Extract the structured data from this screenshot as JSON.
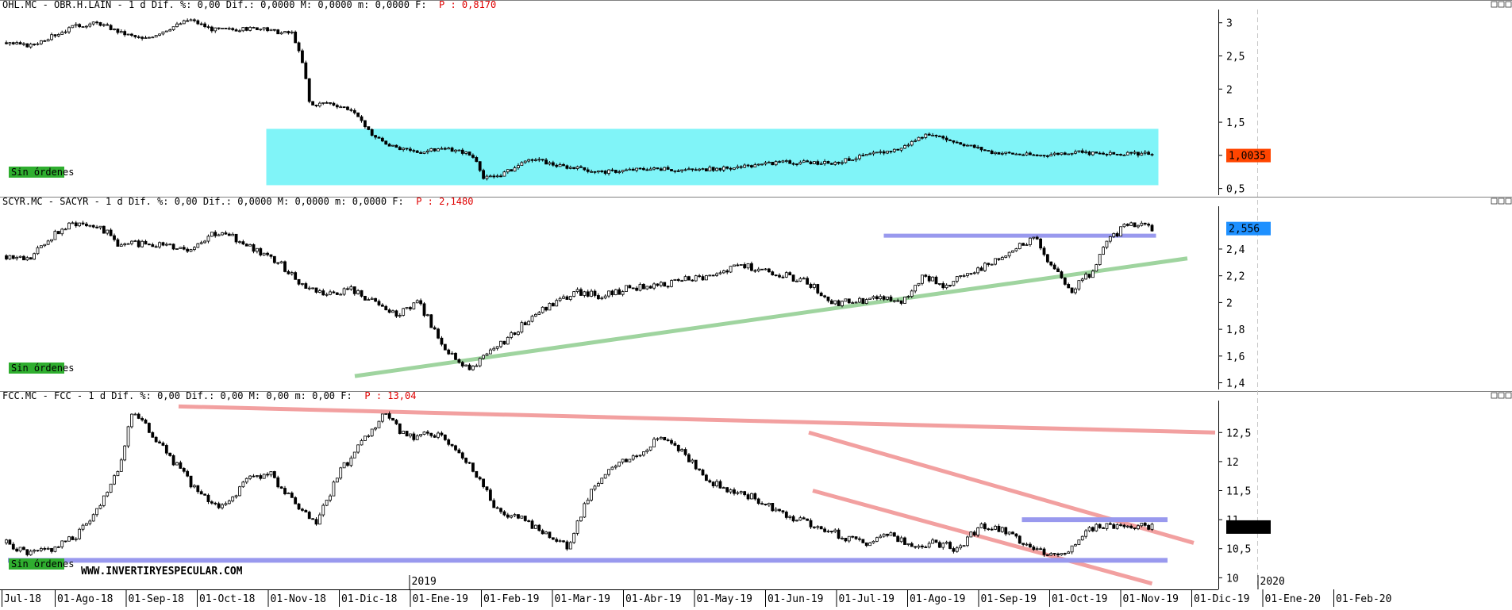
{
  "panels": [
    {
      "id": "ohl",
      "header": "OHL.MC - OBR.H.LAIN -  1 d Dif. %: 0,00 Dif.: 0,0000 M: 0,0000 m: 0,0000 F:",
      "header_value": "P : 0,8170",
      "badge": "Sin órdenes",
      "price_label": "1,0035",
      "price_label_color": "#ff4500"
    },
    {
      "id": "scyr",
      "header": "SCYR.MC - SACYR -  1 d Dif. %: 0,00 Dif.: 0,0000 M: 0,0000 m: 0,0000 F:",
      "header_value": "P : 2,1480",
      "badge": "Sin órdenes",
      "price_label": "2,556",
      "price_label_color": "#1e90ff"
    },
    {
      "id": "fcc",
      "header": "FCC.MC - FCC -  1 d Dif. %: 0,00 Dif.: 0,00 M: 0,00 m: 0,00 F:",
      "header_value": "P : 13,04",
      "badge": "Sin órdenes",
      "price_label": "10,88",
      "price_label_color": "#000000",
      "watermark": "WWW.INVERTIRYESPECULAR.COM"
    }
  ],
  "colors": {
    "zone_fill": "#80f4f8",
    "support_blue": "#9999ee",
    "trend_green": "#9fd49f",
    "trend_red": "#f2a0a0",
    "badge_green": "#2fae2f"
  },
  "chart_data": [
    {
      "type": "candlestick",
      "title": "OHL.MC - OBR.H.LAIN",
      "ylim": [
        0.4,
        3.2
      ],
      "yticks": [
        3,
        2.5,
        2,
        1.5,
        1,
        0.5
      ],
      "ytick_labels": [
        "3",
        "2,5",
        "2",
        "1,5",
        "1",
        "0,5"
      ],
      "last_price": 1.0035,
      "series": [
        [
          0.0,
          2.7
        ],
        [
          0.02,
          2.65
        ],
        [
          0.04,
          2.8
        ],
        [
          0.06,
          2.95
        ],
        [
          0.08,
          3.0
        ],
        [
          0.1,
          2.85
        ],
        [
          0.12,
          2.75
        ],
        [
          0.14,
          2.9
        ],
        [
          0.16,
          3.05
        ],
        [
          0.18,
          2.9
        ],
        [
          0.2,
          2.9
        ],
        [
          0.22,
          2.92
        ],
        [
          0.24,
          2.85
        ],
        [
          0.25,
          2.85
        ],
        [
          0.26,
          2.3
        ],
        [
          0.265,
          1.75
        ],
        [
          0.28,
          1.8
        ],
        [
          0.3,
          1.7
        ],
        [
          0.32,
          1.3
        ],
        [
          0.34,
          1.1
        ],
        [
          0.36,
          1.05
        ],
        [
          0.38,
          1.1
        ],
        [
          0.4,
          1.05
        ],
        [
          0.41,
          0.95
        ],
        [
          0.415,
          0.65
        ],
        [
          0.43,
          0.7
        ],
        [
          0.46,
          0.95
        ],
        [
          0.48,
          0.85
        ],
        [
          0.52,
          0.75
        ],
        [
          0.56,
          0.8
        ],
        [
          0.6,
          0.78
        ],
        [
          0.64,
          0.82
        ],
        [
          0.68,
          0.9
        ],
        [
          0.72,
          0.88
        ],
        [
          0.75,
          1.0
        ],
        [
          0.78,
          1.1
        ],
        [
          0.8,
          1.3
        ],
        [
          0.82,
          1.25
        ],
        [
          0.86,
          1.05
        ],
        [
          0.9,
          1.0
        ],
        [
          0.93,
          1.05
        ],
        [
          0.96,
          1.02
        ]
      ],
      "series_x_range": [
        "Jul-18",
        "01-Nov-19"
      ],
      "zone": {
        "x_from": "01-Nov-18",
        "x_to": "01-Nov-19",
        "y_from": 0.55,
        "y_to": 1.4
      }
    },
    {
      "type": "candlestick",
      "title": "SCYR.MC - SACYR",
      "ylim": [
        1.35,
        2.72
      ],
      "yticks": [
        2.4,
        2.2,
        2.0,
        1.8,
        1.6,
        1.4
      ],
      "ytick_labels": [
        "2,4",
        "2,2",
        "2",
        "1,8",
        "1,6",
        "1,4"
      ],
      "last_price": 2.556,
      "series": [
        [
          0.0,
          2.35
        ],
        [
          0.02,
          2.32
        ],
        [
          0.04,
          2.5
        ],
        [
          0.06,
          2.6
        ],
        [
          0.08,
          2.58
        ],
        [
          0.1,
          2.42
        ],
        [
          0.12,
          2.45
        ],
        [
          0.14,
          2.42
        ],
        [
          0.16,
          2.4
        ],
        [
          0.18,
          2.52
        ],
        [
          0.2,
          2.48
        ],
        [
          0.22,
          2.38
        ],
        [
          0.24,
          2.28
        ],
        [
          0.26,
          2.12
        ],
        [
          0.28,
          2.06
        ],
        [
          0.3,
          2.1
        ],
        [
          0.32,
          2.0
        ],
        [
          0.34,
          1.9
        ],
        [
          0.36,
          2.0
        ],
        [
          0.38,
          1.7
        ],
        [
          0.4,
          1.5
        ],
        [
          0.42,
          1.6
        ],
        [
          0.44,
          1.75
        ],
        [
          0.46,
          1.9
        ],
        [
          0.48,
          2.0
        ],
        [
          0.5,
          2.08
        ],
        [
          0.52,
          2.05
        ],
        [
          0.54,
          2.1
        ],
        [
          0.56,
          2.12
        ],
        [
          0.58,
          2.15
        ],
        [
          0.6,
          2.18
        ],
        [
          0.62,
          2.2
        ],
        [
          0.64,
          2.28
        ],
        [
          0.66,
          2.25
        ],
        [
          0.68,
          2.2
        ],
        [
          0.7,
          2.15
        ],
        [
          0.72,
          2.0
        ],
        [
          0.74,
          2.0
        ],
        [
          0.76,
          2.05
        ],
        [
          0.78,
          2.0
        ],
        [
          0.8,
          2.2
        ],
        [
          0.82,
          2.12
        ],
        [
          0.84,
          2.22
        ],
        [
          0.86,
          2.3
        ],
        [
          0.88,
          2.42
        ],
        [
          0.9,
          2.48
        ],
        [
          0.91,
          2.3
        ],
        [
          0.93,
          2.1
        ],
        [
          0.95,
          2.25
        ],
        [
          0.96,
          2.45
        ],
        [
          0.98,
          2.6
        ],
        [
          1.0,
          2.556
        ]
      ],
      "series_x_range": [
        "Jul-18",
        "01-Nov-19"
      ],
      "support": {
        "y": 2.5,
        "x_from": "01-Jul-19",
        "x_to": "01-Nov-19"
      },
      "trendline": {
        "from": [
          "01-Dic-18",
          1.45
        ],
        "to": [
          "01-Dic-19",
          2.33
        ]
      }
    },
    {
      "type": "candlestick",
      "title": "FCC.MC - FCC",
      "ylim": [
        9.8,
        13.05
      ],
      "yticks": [
        12.5,
        12,
        11.5,
        11,
        10.5,
        10
      ],
      "ytick_labels": [
        "12,5",
        "12",
        "11,5",
        "11",
        "10,5",
        "10"
      ],
      "last_price": 10.88,
      "series": [
        [
          0.0,
          10.6
        ],
        [
          0.02,
          10.4
        ],
        [
          0.04,
          10.5
        ],
        [
          0.06,
          10.7
        ],
        [
          0.08,
          11.2
        ],
        [
          0.1,
          12.0
        ],
        [
          0.11,
          12.9
        ],
        [
          0.13,
          12.4
        ],
        [
          0.15,
          11.9
        ],
        [
          0.17,
          11.4
        ],
        [
          0.19,
          11.2
        ],
        [
          0.21,
          11.7
        ],
        [
          0.23,
          11.8
        ],
        [
          0.25,
          11.3
        ],
        [
          0.27,
          10.9
        ],
        [
          0.29,
          11.8
        ],
        [
          0.31,
          12.3
        ],
        [
          0.33,
          12.8
        ],
        [
          0.35,
          12.4
        ],
        [
          0.37,
          12.5
        ],
        [
          0.39,
          12.3
        ],
        [
          0.41,
          11.8
        ],
        [
          0.43,
          11.1
        ],
        [
          0.45,
          11.0
        ],
        [
          0.47,
          10.8
        ],
        [
          0.49,
          10.5
        ],
        [
          0.51,
          11.5
        ],
        [
          0.53,
          11.9
        ],
        [
          0.55,
          12.1
        ],
        [
          0.57,
          12.45
        ],
        [
          0.59,
          12.2
        ],
        [
          0.61,
          11.7
        ],
        [
          0.63,
          11.5
        ],
        [
          0.65,
          11.4
        ],
        [
          0.67,
          11.2
        ],
        [
          0.69,
          11.0
        ],
        [
          0.71,
          10.9
        ],
        [
          0.73,
          10.7
        ],
        [
          0.75,
          10.6
        ],
        [
          0.77,
          10.8
        ],
        [
          0.79,
          10.5
        ],
        [
          0.81,
          10.6
        ],
        [
          0.83,
          10.5
        ],
        [
          0.85,
          10.9
        ],
        [
          0.87,
          10.8
        ],
        [
          0.89,
          10.6
        ],
        [
          0.91,
          10.4
        ],
        [
          0.93,
          10.5
        ],
        [
          0.95,
          10.9
        ],
        [
          1.0,
          10.88
        ]
      ],
      "series_x_range": [
        "Jul-18",
        "01-Nov-19"
      ],
      "trendlines": [
        {
          "from": [
            "Sep-18",
            12.95
          ],
          "to": [
            "01-Dic-19",
            12.5
          ]
        },
        {
          "from": [
            "01-Jun-19",
            12.5
          ],
          "to": [
            "01-Dic-19",
            10.6
          ]
        },
        {
          "from": [
            "01-Jun-19",
            11.5
          ],
          "to": [
            "01-Nov-19",
            9.9
          ]
        }
      ],
      "supports": [
        {
          "y": 10.3,
          "x_from": "Jul-18",
          "x_to": "01-Dic-19"
        },
        {
          "y": 11.0,
          "x_from": "01-Sep-19",
          "x_to": "01-Dic-19"
        }
      ]
    }
  ],
  "x_axis": {
    "labels": [
      "Jul-18",
      "01-Ago-18",
      "01-Sep-18",
      "01-Oct-18",
      "01-Nov-18",
      "01-Dic-18",
      "01-Ene-19",
      "01-Feb-19",
      "01-Mar-19",
      "01-Abr-19",
      "01-May-19",
      "01-Jun-19",
      "01-Jul-19",
      "01-Ago-19",
      "01-Sep-19",
      "01-Oct-19",
      "01-Nov-19",
      "01-Dic-19",
      "01-Ene-20",
      "01-Feb-20"
    ],
    "year_labels": [
      "2019",
      "2020"
    ]
  }
}
